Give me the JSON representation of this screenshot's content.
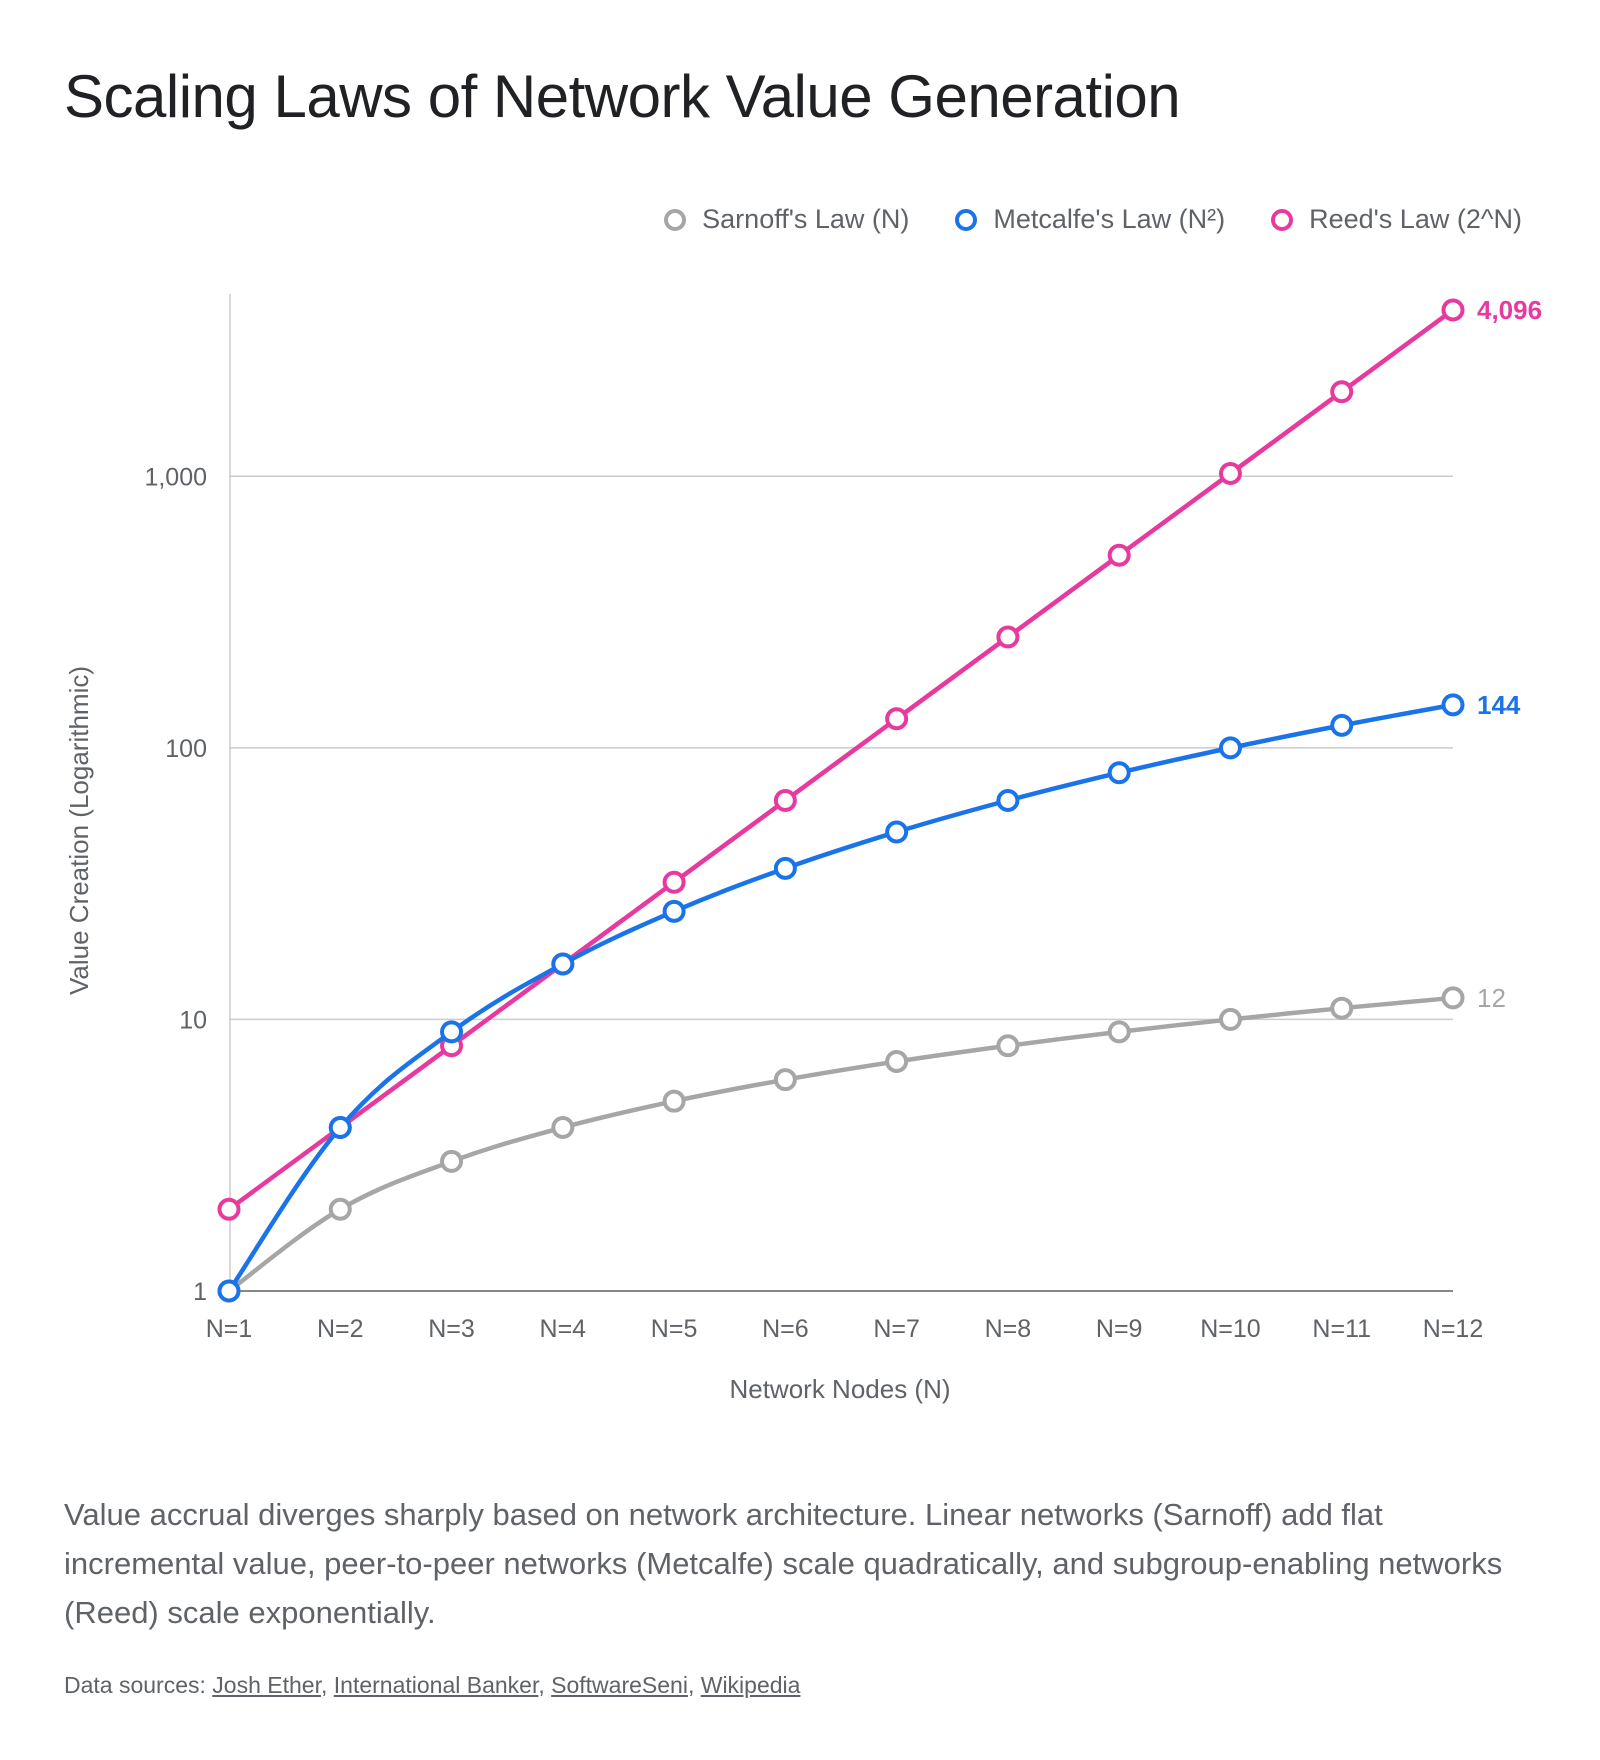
{
  "title": "Scaling Laws of Network Value Generation",
  "caption": "Value accrual diverges sharply based on network architecture. Linear networks (Sarnoff) add flat incremental value, peer-to-peer networks (Metcalfe) scale quadratically, and subgroup-enabling networks (Reed) scale exponentially.",
  "sources": {
    "prefix": "Data sources:",
    "links": [
      "Josh Ether",
      "International Banker",
      "SoftwareSeni",
      "Wikipedia"
    ]
  },
  "colors": {
    "sarnoff": "#a6a6a6",
    "metcalfe": "#1a73e8",
    "reed": "#e8399f",
    "grid": "#cccccc",
    "axis": "#5f6368"
  },
  "chart_data": {
    "type": "line",
    "xlabel": "Network Nodes (N)",
    "ylabel": "Value Creation (Logarithmic)",
    "y_scale": "log",
    "ylim": [
      1,
      4096
    ],
    "y_ticks": [
      1,
      10,
      100,
      1000
    ],
    "y_tick_labels": [
      "1",
      "10",
      "100",
      "1,000"
    ],
    "grid": true,
    "legend_position": "top-right",
    "categories": [
      "N=1",
      "N=2",
      "N=3",
      "N=4",
      "N=5",
      "N=6",
      "N=7",
      "N=8",
      "N=9",
      "N=10",
      "N=11",
      "N=12"
    ],
    "series": [
      {
        "name": "Sarnoff's Law (N)",
        "key": "sarnoff",
        "values": [
          1,
          2,
          3,
          4,
          5,
          6,
          7,
          8,
          9,
          10,
          11,
          12
        ],
        "end_label": "12"
      },
      {
        "name": "Metcalfe's Law (N²)",
        "key": "metcalfe",
        "values": [
          1,
          4,
          9,
          16,
          25,
          36,
          49,
          64,
          81,
          100,
          121,
          144
        ],
        "end_label": "144"
      },
      {
        "name": "Reed's Law (2^N)",
        "key": "reed",
        "values": [
          2,
          4,
          8,
          16,
          32,
          64,
          128,
          256,
          512,
          1024,
          2048,
          4096
        ],
        "end_label": "4,096"
      }
    ]
  }
}
